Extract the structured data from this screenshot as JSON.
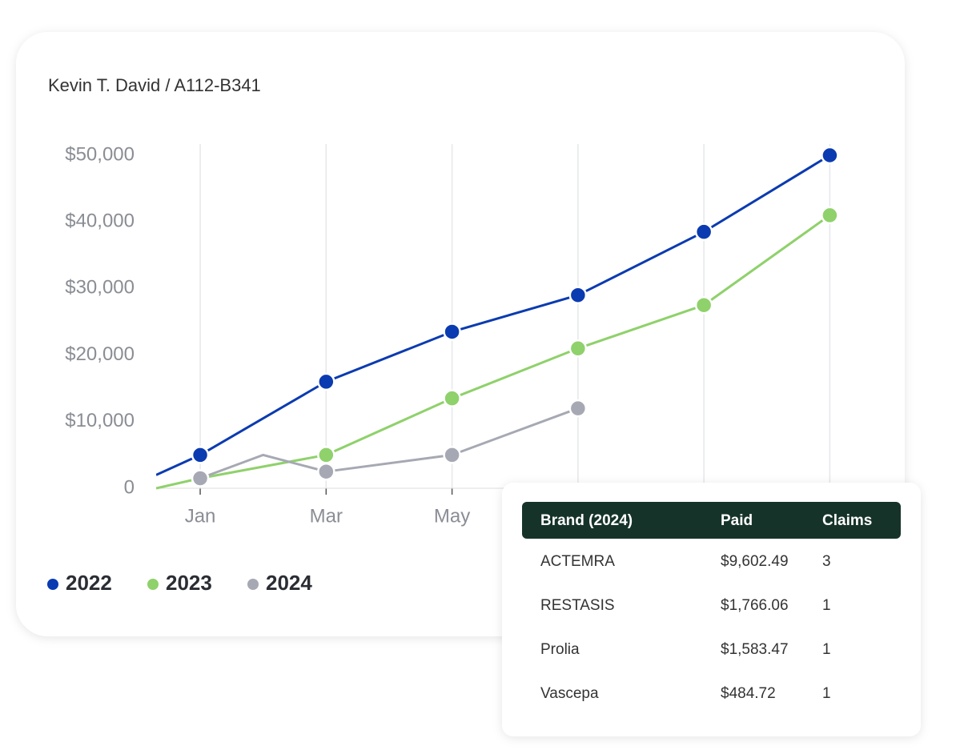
{
  "chart_data": {
    "type": "line",
    "title": "Kevin T. David / A112-B341",
    "xlim": [
      0.3,
      11.3
    ],
    "xticks": [
      {
        "value": 1,
        "label": "Jan"
      },
      {
        "value": 3,
        "label": "Mar"
      },
      {
        "value": 5,
        "label": "May"
      },
      {
        "value": 7,
        "label": null
      },
      {
        "value": 9,
        "label": null
      },
      {
        "value": 11,
        "label": null
      }
    ],
    "ylim": [
      0,
      50000
    ],
    "yticks": [
      {
        "value": 0,
        "label": "0"
      },
      {
        "value": 10000,
        "label": "$10,000"
      },
      {
        "value": 20000,
        "label": "$20,000"
      },
      {
        "value": 30000,
        "label": "$30,000"
      },
      {
        "value": 40000,
        "label": "$40,000"
      },
      {
        "value": 50000,
        "label": "$50,000"
      }
    ],
    "grid": true,
    "series": [
      {
        "name": "2022",
        "color": "#0b3bb0",
        "x": [
          0.3,
          1,
          3,
          5,
          7,
          9,
          11
        ],
        "values": [
          2000,
          5000,
          16000,
          23500,
          29000,
          38500,
          50000
        ]
      },
      {
        "name": "2023",
        "color": "#8fd16b",
        "x": [
          0.3,
          1,
          3,
          5,
          7,
          9,
          11
        ],
        "values": [
          0,
          1500,
          5000,
          13500,
          21000,
          27500,
          41000
        ]
      },
      {
        "name": "2024",
        "color": "#a6a9b3",
        "x": [
          1,
          2,
          3,
          5,
          7
        ],
        "values": [
          1500,
          5000,
          2500,
          5000,
          12000
        ]
      }
    ]
  },
  "table": {
    "header": [
      "Brand (2024)",
      "Paid",
      "Claims"
    ],
    "rows": [
      [
        "ACTEMRA",
        "$9,602.49",
        "3"
      ],
      [
        "RESTASIS",
        "$1,766.06",
        "1"
      ],
      [
        "Prolia",
        "$1,583.47",
        "1"
      ],
      [
        "Vascepa",
        "$484.72",
        "1"
      ]
    ]
  }
}
